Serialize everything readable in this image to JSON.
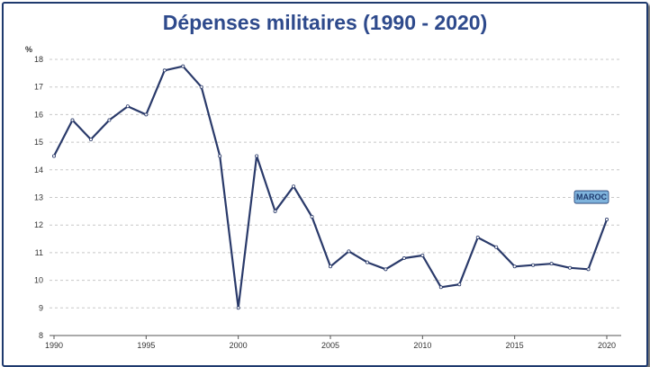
{
  "chart_data": {
    "type": "line",
    "title": "Dépenses militaires (1990 - 2020)",
    "ylabel": "%",
    "xlabel": "",
    "ylim": [
      8,
      18
    ],
    "xlim": [
      1990,
      2020
    ],
    "yticks": [
      8,
      9,
      10,
      11,
      12,
      13,
      14,
      15,
      16,
      17,
      18
    ],
    "xticks": [
      1990,
      1995,
      2000,
      2005,
      2010,
      2015,
      2020
    ],
    "grid": true,
    "series": [
      {
        "name": "MAROC",
        "color": "#2a3a6a",
        "x": [
          1990,
          1991,
          1992,
          1993,
          1994,
          1995,
          1996,
          1997,
          1998,
          1999,
          2000,
          2001,
          2002,
          2003,
          2004,
          2005,
          2006,
          2007,
          2008,
          2009,
          2010,
          2011,
          2012,
          2013,
          2014,
          2015,
          2016,
          2017,
          2018,
          2019,
          2020
        ],
        "values": [
          14.5,
          15.8,
          15.1,
          15.8,
          16.3,
          16.0,
          17.6,
          17.75,
          17.0,
          14.5,
          9.0,
          14.5,
          12.5,
          13.4,
          12.3,
          10.5,
          11.05,
          10.65,
          10.4,
          10.8,
          10.9,
          9.75,
          9.85,
          11.55,
          11.2,
          10.5,
          10.55,
          10.6,
          10.45,
          10.4,
          12.2
        ]
      }
    ],
    "series_label_bg": "#7fb3dc"
  }
}
